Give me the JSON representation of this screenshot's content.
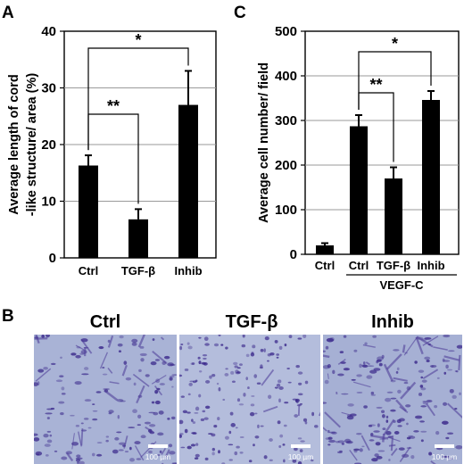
{
  "panel_labels": {
    "a": "A",
    "b": "B",
    "c": "C"
  },
  "chart_data": [
    {
      "type": "bar",
      "panel": "A",
      "ylabel_line1": "Average length of cord",
      "ylabel_line2": "-like structure/ area (%)",
      "ylim": [
        0,
        40
      ],
      "yticks": [
        0,
        10,
        20,
        30,
        40
      ],
      "grid": "horizontal",
      "categories": [
        "Ctrl",
        "TGF-β",
        "Inhib"
      ],
      "values": [
        16.3,
        6.8,
        27.0
      ],
      "errors": [
        1.8,
        1.8,
        6.0
      ],
      "bar_color": "#000000",
      "significance": [
        {
          "from": 0,
          "to": 1,
          "label": "**"
        },
        {
          "from": 0,
          "to": 2,
          "label": "*"
        }
      ]
    },
    {
      "type": "bar",
      "panel": "C",
      "ylabel": "Average cell number/ field",
      "ylim": [
        0,
        500
      ],
      "yticks": [
        0,
        100,
        200,
        300,
        400,
        500
      ],
      "grid": "horizontal",
      "categories": [
        "Ctrl",
        "Ctrl",
        "TGF-β",
        "Inhib"
      ],
      "values": [
        20,
        287,
        170,
        346
      ],
      "errors": [
        5,
        25,
        25,
        20
      ],
      "bar_color": "#000000",
      "group_label": "VEGF-C",
      "significance": [
        {
          "from": 1,
          "to": 2,
          "label": "**"
        },
        {
          "from": 1,
          "to": 3,
          "label": "*"
        }
      ]
    }
  ],
  "micrographs": [
    {
      "title": "Ctrl",
      "scale_label": "100 µm"
    },
    {
      "title": "TGF-β",
      "scale_label": "100 µm"
    },
    {
      "title": "Inhib",
      "scale_label": "100 µm"
    }
  ],
  "colors": {
    "stain_background": "#a9b3d6",
    "stain_cells": "#3c2a8c"
  }
}
